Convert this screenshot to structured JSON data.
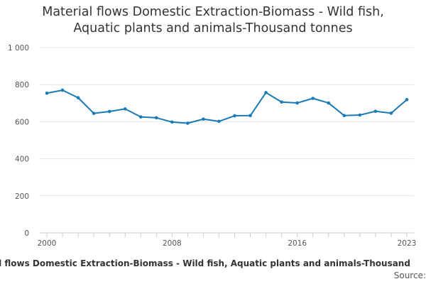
{
  "chart_data": {
    "type": "line",
    "title_lines": [
      "Material flows Domestic Extraction-Biomass - Wild fish,",
      "Aquatic plants and animals-Thousand tonnes"
    ],
    "x": [
      2000,
      2001,
      2002,
      2003,
      2004,
      2005,
      2006,
      2007,
      2008,
      2009,
      2010,
      2011,
      2012,
      2013,
      2014,
      2015,
      2016,
      2017,
      2018,
      2019,
      2020,
      2021,
      2022,
      2023
    ],
    "series": [
      {
        "values": [
          754,
          770,
          729,
          645,
          655,
          669,
          626,
          621,
          598,
          592,
          614,
          602,
          632,
          633,
          757,
          706,
          701,
          726,
          701,
          633,
          636,
          656,
          646,
          719
        ]
      }
    ],
    "x_ticks": [
      "2000",
      "2008",
      "2016",
      "2023"
    ],
    "y_ticks": [
      "0",
      "200",
      "400",
      "600",
      "800",
      "1 000"
    ],
    "xlim": [
      2000,
      2023
    ],
    "ylim": [
      0,
      1000
    ],
    "grid": true,
    "line_color": "#1a7ab5"
  },
  "footer": {
    "chart_title": "al flows Domestic Extraction-Biomass - Wild fish, Aquatic plants and animals-Thousand",
    "source_label": "Source:"
  }
}
